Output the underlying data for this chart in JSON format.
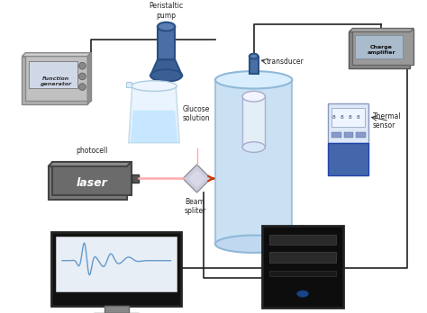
{
  "title": "",
  "labels": {
    "function_generator": "Function\ngenerator",
    "peristaltic_pump": "Peristaltic\npump",
    "transducer": "transducer",
    "thermal_sensor": "Thermal\nsensor",
    "charge_amplifier": "Charge\namplifier",
    "glucose_solution": "Glucose\nsolution",
    "photocell": "photocell",
    "laser": "laser",
    "beam_spliter": "Beam\nspliter"
  },
  "colors": {
    "bg_color": "#ffffff",
    "laser_body": "#6b6b6b",
    "laser_text": "#ffffff",
    "function_gen": "#aaaaaa",
    "pump_body": "#4a6fa5",
    "cylinder_body": "#b8d8f0",
    "cylinder_stroke": "#aaccee",
    "beaker_body": "#cce8f8",
    "charge_amp": "#888888",
    "thermal_device": "#4466aa",
    "computer_screen": "#111111",
    "computer_tower": "#111111",
    "screen_wave": "#6699cc",
    "arrow_color": "#cc3300",
    "wire_color": "#222222",
    "beam_color": "#ffaaaa",
    "beam_splitter": "#bbbbcc"
  }
}
